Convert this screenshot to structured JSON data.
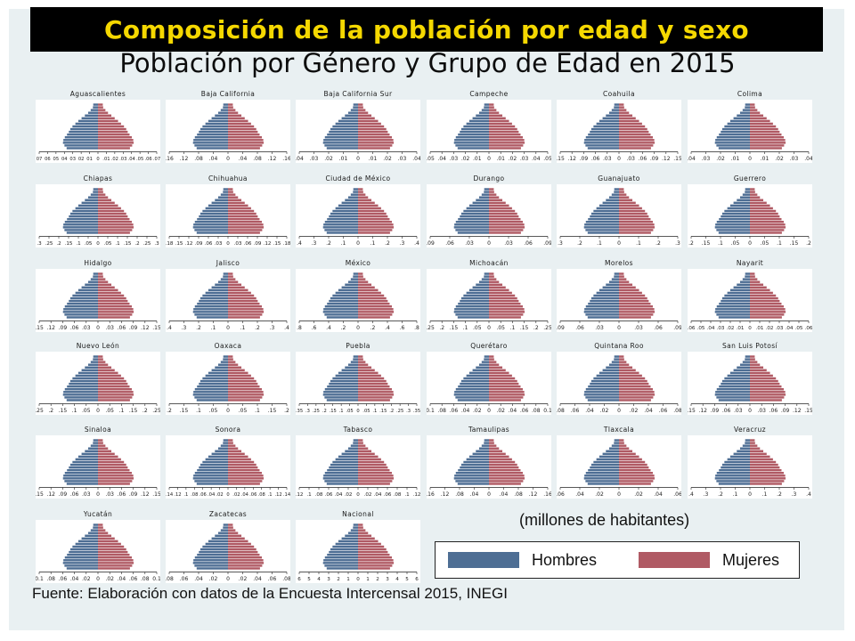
{
  "banner": {
    "title": "Composición de la población por edad y sexo"
  },
  "subtitle": "Población por Género y Grupo de Edad en 2015",
  "units_note": "(millones de habitantes)",
  "legend": {
    "items": [
      {
        "label": "Hombres",
        "color": "#4e6e94"
      },
      {
        "label": "Mujeres",
        "color": "#b05a64"
      }
    ]
  },
  "source": "Fuente: Elaboración con datos de la Encuesta Intercensal 2015, INEGI",
  "colors": {
    "men": "#4e6e94",
    "women": "#b05a64",
    "banner_bg": "#000000",
    "banner_text": "#f5d800",
    "slide_bg": "#e9f0f2"
  },
  "chart_data": {
    "type": "population-pyramid",
    "age_groups": 17,
    "x_axis_note": "Población en millones, hombres a la izquierda y mujeres a la derecha",
    "relative_profile": [
      0.86,
      0.92,
      0.96,
      0.95,
      0.91,
      0.85,
      0.8,
      0.76,
      0.7,
      0.62,
      0.54,
      0.45,
      0.36,
      0.27,
      0.2,
      0.14,
      0.13
    ],
    "panels": [
      {
        "title": "Aguascalientes",
        "ticks": [
          "07",
          "06",
          "05",
          "04",
          "03",
          "02",
          "01",
          "0",
          ".01",
          ".02",
          ".03",
          ".04",
          ".05",
          ".06",
          ".07"
        ],
        "xmax": 0.07
      },
      {
        "title": "Baja California",
        "ticks": [
          ".16",
          ".12",
          ".08",
          ".04",
          "0",
          ".04",
          ".08",
          ".12",
          ".16"
        ],
        "xmax": 0.16
      },
      {
        "title": "Baja California Sur",
        "ticks": [
          ".04",
          ".03",
          ".02",
          ".01",
          "0",
          ".01",
          ".02",
          ".03",
          ".04"
        ],
        "xmax": 0.04
      },
      {
        "title": "Campeche",
        "ticks": [
          ".05",
          ".04",
          ".03",
          ".02",
          ".01",
          "0",
          ".01",
          ".02",
          ".03",
          ".04",
          ".05"
        ],
        "xmax": 0.05
      },
      {
        "title": "Coahuila",
        "ticks": [
          ".15",
          ".12",
          ".09",
          ".06",
          ".03",
          "0",
          ".03",
          ".06",
          ".09",
          ".12",
          ".15"
        ],
        "xmax": 0.15
      },
      {
        "title": "Colima",
        "ticks": [
          ".04",
          ".03",
          ".02",
          ".01",
          "0",
          ".01",
          ".02",
          ".03",
          ".04"
        ],
        "xmax": 0.04
      },
      {
        "title": "Chiapas",
        "ticks": [
          ".3",
          ".25",
          ".2",
          ".15",
          ".1",
          ".05",
          "0",
          ".05",
          ".1",
          ".15",
          ".2",
          ".25",
          ".3"
        ],
        "xmax": 0.3
      },
      {
        "title": "Chihuahua",
        "ticks": [
          ".18",
          ".15",
          ".12",
          ".09",
          ".06",
          ".03",
          "0",
          ".03",
          ".06",
          ".09",
          ".12",
          ".15",
          ".18"
        ],
        "xmax": 0.18
      },
      {
        "title": "Ciudad de México",
        "ticks": [
          ".4",
          ".3",
          ".2",
          ".1",
          "0",
          ".1",
          ".2",
          ".3",
          ".4"
        ],
        "xmax": 0.4
      },
      {
        "title": "Durango",
        "ticks": [
          ".09",
          ".06",
          ".03",
          "0",
          ".03",
          ".06",
          ".09"
        ],
        "xmax": 0.09
      },
      {
        "title": "Guanajuato",
        "ticks": [
          ".3",
          ".2",
          ".1",
          "0",
          ".1",
          ".2",
          ".3"
        ],
        "xmax": 0.3
      },
      {
        "title": "Guerrero",
        "ticks": [
          ".2",
          ".15",
          ".1",
          ".05",
          "0",
          ".05",
          ".1",
          ".15",
          ".2"
        ],
        "xmax": 0.2
      },
      {
        "title": "Hidalgo",
        "ticks": [
          ".15",
          ".12",
          ".09",
          ".06",
          ".03",
          "0",
          ".03",
          ".06",
          ".09",
          ".12",
          ".15"
        ],
        "xmax": 0.15
      },
      {
        "title": "Jalisco",
        "ticks": [
          ".4",
          ".3",
          ".2",
          ".1",
          "0",
          ".1",
          ".2",
          ".3",
          ".4"
        ],
        "xmax": 0.4
      },
      {
        "title": "México",
        "ticks": [
          ".8",
          ".6",
          ".4",
          ".2",
          "0",
          ".2",
          ".4",
          ".6",
          ".8"
        ],
        "xmax": 0.8
      },
      {
        "title": "Michoacán",
        "ticks": [
          ".25",
          ".2",
          ".15",
          ".1",
          ".05",
          "0",
          ".05",
          ".1",
          ".15",
          ".2",
          ".25"
        ],
        "xmax": 0.25
      },
      {
        "title": "Morelos",
        "ticks": [
          ".09",
          ".06",
          ".03",
          "0",
          ".03",
          ".06",
          ".09"
        ],
        "xmax": 0.09
      },
      {
        "title": "Nayarit",
        "ticks": [
          ".06",
          ".05",
          ".04",
          ".03",
          ".02",
          ".01",
          "0",
          ".01",
          ".02",
          ".03",
          ".04",
          ".05",
          ".06"
        ],
        "xmax": 0.06
      },
      {
        "title": "Nuevo León",
        "ticks": [
          ".25",
          ".2",
          ".15",
          ".1",
          ".05",
          "0",
          ".05",
          ".1",
          ".15",
          ".2",
          ".25"
        ],
        "xmax": 0.25
      },
      {
        "title": "Oaxaca",
        "ticks": [
          ".2",
          ".15",
          ".1",
          ".05",
          "0",
          ".05",
          ".1",
          ".15",
          ".2"
        ],
        "xmax": 0.2
      },
      {
        "title": "Puebla",
        "ticks": [
          ".35",
          ".3",
          ".25",
          ".2",
          ".15",
          ".1",
          ".05",
          "0",
          ".05",
          ".1",
          ".15",
          ".2",
          ".25",
          ".3",
          ".35"
        ],
        "xmax": 0.35
      },
      {
        "title": "Querétaro",
        "ticks": [
          "0.1",
          ".08",
          ".06",
          ".04",
          ".02",
          "0",
          ".02",
          ".04",
          ".06",
          ".08",
          "0.1"
        ],
        "xmax": 0.1
      },
      {
        "title": "Quintana Roo",
        "ticks": [
          ".08",
          ".06",
          ".04",
          ".02",
          "0",
          ".02",
          ".04",
          ".06",
          ".08"
        ],
        "xmax": 0.08
      },
      {
        "title": "San Luis Potosí",
        "ticks": [
          ".15",
          ".12",
          ".09",
          ".06",
          ".03",
          "0",
          ".03",
          ".06",
          ".09",
          ".12",
          ".15"
        ],
        "xmax": 0.15
      },
      {
        "title": "Sinaloa",
        "ticks": [
          ".15",
          ".12",
          ".09",
          ".06",
          ".03",
          "0",
          ".03",
          ".06",
          ".09",
          ".12",
          ".15"
        ],
        "xmax": 0.15
      },
      {
        "title": "Sonora",
        "ticks": [
          ".14",
          ".12",
          ".1",
          ".08",
          ".06",
          ".04",
          ".02",
          "0",
          ".02",
          ".04",
          ".06",
          ".08",
          ".1",
          ".12",
          ".14"
        ],
        "xmax": 0.14
      },
      {
        "title": "Tabasco",
        "ticks": [
          ".12",
          ".1",
          ".08",
          ".06",
          ".04",
          ".02",
          "0",
          ".02",
          ".04",
          ".06",
          ".08",
          ".1",
          ".12"
        ],
        "xmax": 0.12
      },
      {
        "title": "Tamaulipas",
        "ticks": [
          ".16",
          ".12",
          ".08",
          ".04",
          "0",
          ".04",
          ".08",
          ".12",
          ".16"
        ],
        "xmax": 0.16
      },
      {
        "title": "Tlaxcala",
        "ticks": [
          ".06",
          ".04",
          ".02",
          "0",
          ".02",
          ".04",
          ".06"
        ],
        "xmax": 0.06
      },
      {
        "title": "Veracruz",
        "ticks": [
          ".4",
          ".3",
          ".2",
          ".1",
          "0",
          ".1",
          ".2",
          ".3",
          ".4"
        ],
        "xmax": 0.4
      },
      {
        "title": "Yucatán",
        "ticks": [
          "0.1",
          ".08",
          ".06",
          ".04",
          ".02",
          "0",
          ".02",
          ".04",
          ".06",
          ".08",
          "0.1"
        ],
        "xmax": 0.1
      },
      {
        "title": "Zacatecas",
        "ticks": [
          ".08",
          ".06",
          ".04",
          ".02",
          "0",
          ".02",
          ".04",
          ".06",
          ".08"
        ],
        "xmax": 0.08
      },
      {
        "title": "Nacional",
        "ticks": [
          "6",
          "5",
          "4",
          "3",
          "2",
          "1",
          "0",
          "1",
          "2",
          "3",
          "4",
          "5",
          "6"
        ],
        "xmax": 6
      }
    ]
  }
}
